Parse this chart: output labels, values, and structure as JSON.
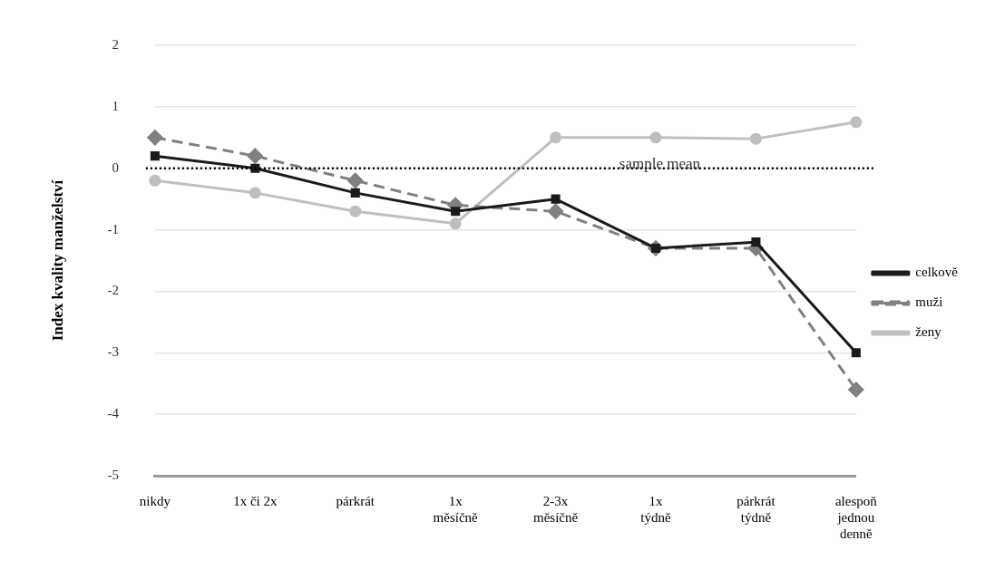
{
  "chart_data": {
    "type": "line",
    "ylabel": "Index kvality manželství",
    "categories": [
      "nikdy",
      "1x či 2x",
      "párkrát",
      "1x\nměsíčně",
      "2-3x\nměsíčně",
      "1x\ntýdně",
      "párkrát\ntýdně",
      "alespoň\njednou\ndenně"
    ],
    "series": [
      {
        "name": "celkově",
        "color": "#1a1a1a",
        "marker": "square",
        "line_style": "solid",
        "values": [
          0.2,
          0,
          -0.4,
          -0.7,
          -0.5,
          -1.3,
          -1.2,
          -3.0
        ]
      },
      {
        "name": "muži",
        "color": "#808080",
        "marker": "diamond",
        "line_style": "dashed",
        "values": [
          0.5,
          0.2,
          -0.2,
          -0.6,
          -0.7,
          -1.3,
          -1.3,
          -3.6
        ]
      },
      {
        "name": "ženy",
        "color": "#bfbfbf",
        "marker": "circle",
        "line_style": "solid",
        "values": [
          -0.2,
          -0.4,
          -0.7,
          -0.9,
          0.5,
          0.5,
          0.48,
          0.75
        ]
      }
    ],
    "ylim": [
      -5,
      2
    ],
    "yticks": [
      -5,
      -4,
      -3,
      -2,
      -1,
      0,
      1,
      2
    ],
    "grid": "y",
    "legend": "right",
    "ref_lines": [
      {
        "axis": "y",
        "value": 0,
        "label": "sample mean",
        "color": "#000000",
        "line_style": "dotted"
      }
    ]
  }
}
